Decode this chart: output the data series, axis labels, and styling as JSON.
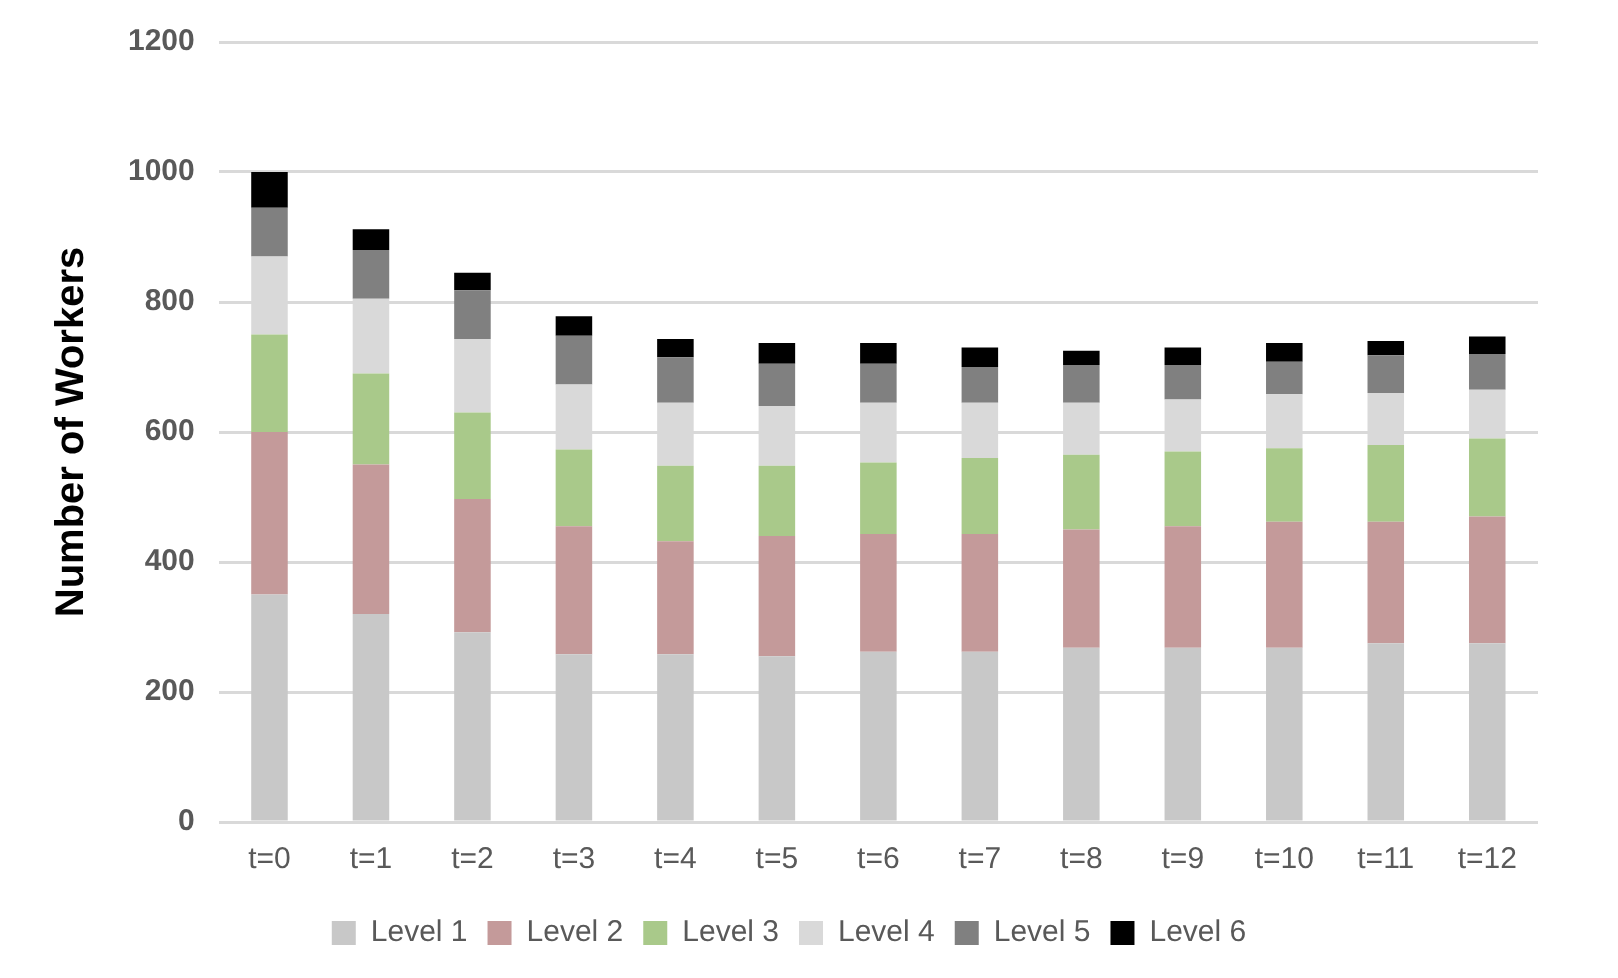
{
  "chart_data": {
    "type": "bar",
    "stacked": true,
    "ylabel": "Number of Workers",
    "categories": [
      "t=0",
      "t=1",
      "t=2",
      "t=3",
      "t=4",
      "t=5",
      "t=6",
      "t=7",
      "t=8",
      "t=9",
      "t=10",
      "t=11",
      "t=12"
    ],
    "series": [
      {
        "name": "Level 1",
        "color": "#c8c8c8",
        "values": [
          350,
          320,
          292,
          258,
          258,
          255,
          262,
          262,
          268,
          268,
          268,
          275,
          275
        ]
      },
      {
        "name": "Level 2",
        "color": "#c49a9a",
        "values": [
          250,
          230,
          205,
          197,
          174,
          185,
          181,
          181,
          182,
          187,
          194,
          187,
          195
        ]
      },
      {
        "name": "Level 3",
        "color": "#a9c98a",
        "values": [
          150,
          140,
          133,
          118,
          116,
          108,
          110,
          117,
          115,
          115,
          113,
          118,
          120
        ]
      },
      {
        "name": "Level 4",
        "color": "#d9d9d9",
        "values": [
          120,
          115,
          113,
          100,
          97,
          92,
          92,
          85,
          80,
          80,
          83,
          80,
          75
        ]
      },
      {
        "name": "Level 5",
        "color": "#808080",
        "values": [
          75,
          75,
          75,
          75,
          70,
          65,
          60,
          55,
          58,
          53,
          50,
          58,
          55
        ]
      },
      {
        "name": "Level 6",
        "color": "#000000",
        "values": [
          55,
          32,
          27,
          30,
          28,
          32,
          32,
          30,
          22,
          27,
          29,
          22,
          27
        ]
      }
    ],
    "ylim": [
      0,
      1200
    ],
    "yticks": [
      0,
      200,
      400,
      600,
      800,
      1000,
      1200
    ],
    "grid": "y",
    "legend": "bottom"
  }
}
